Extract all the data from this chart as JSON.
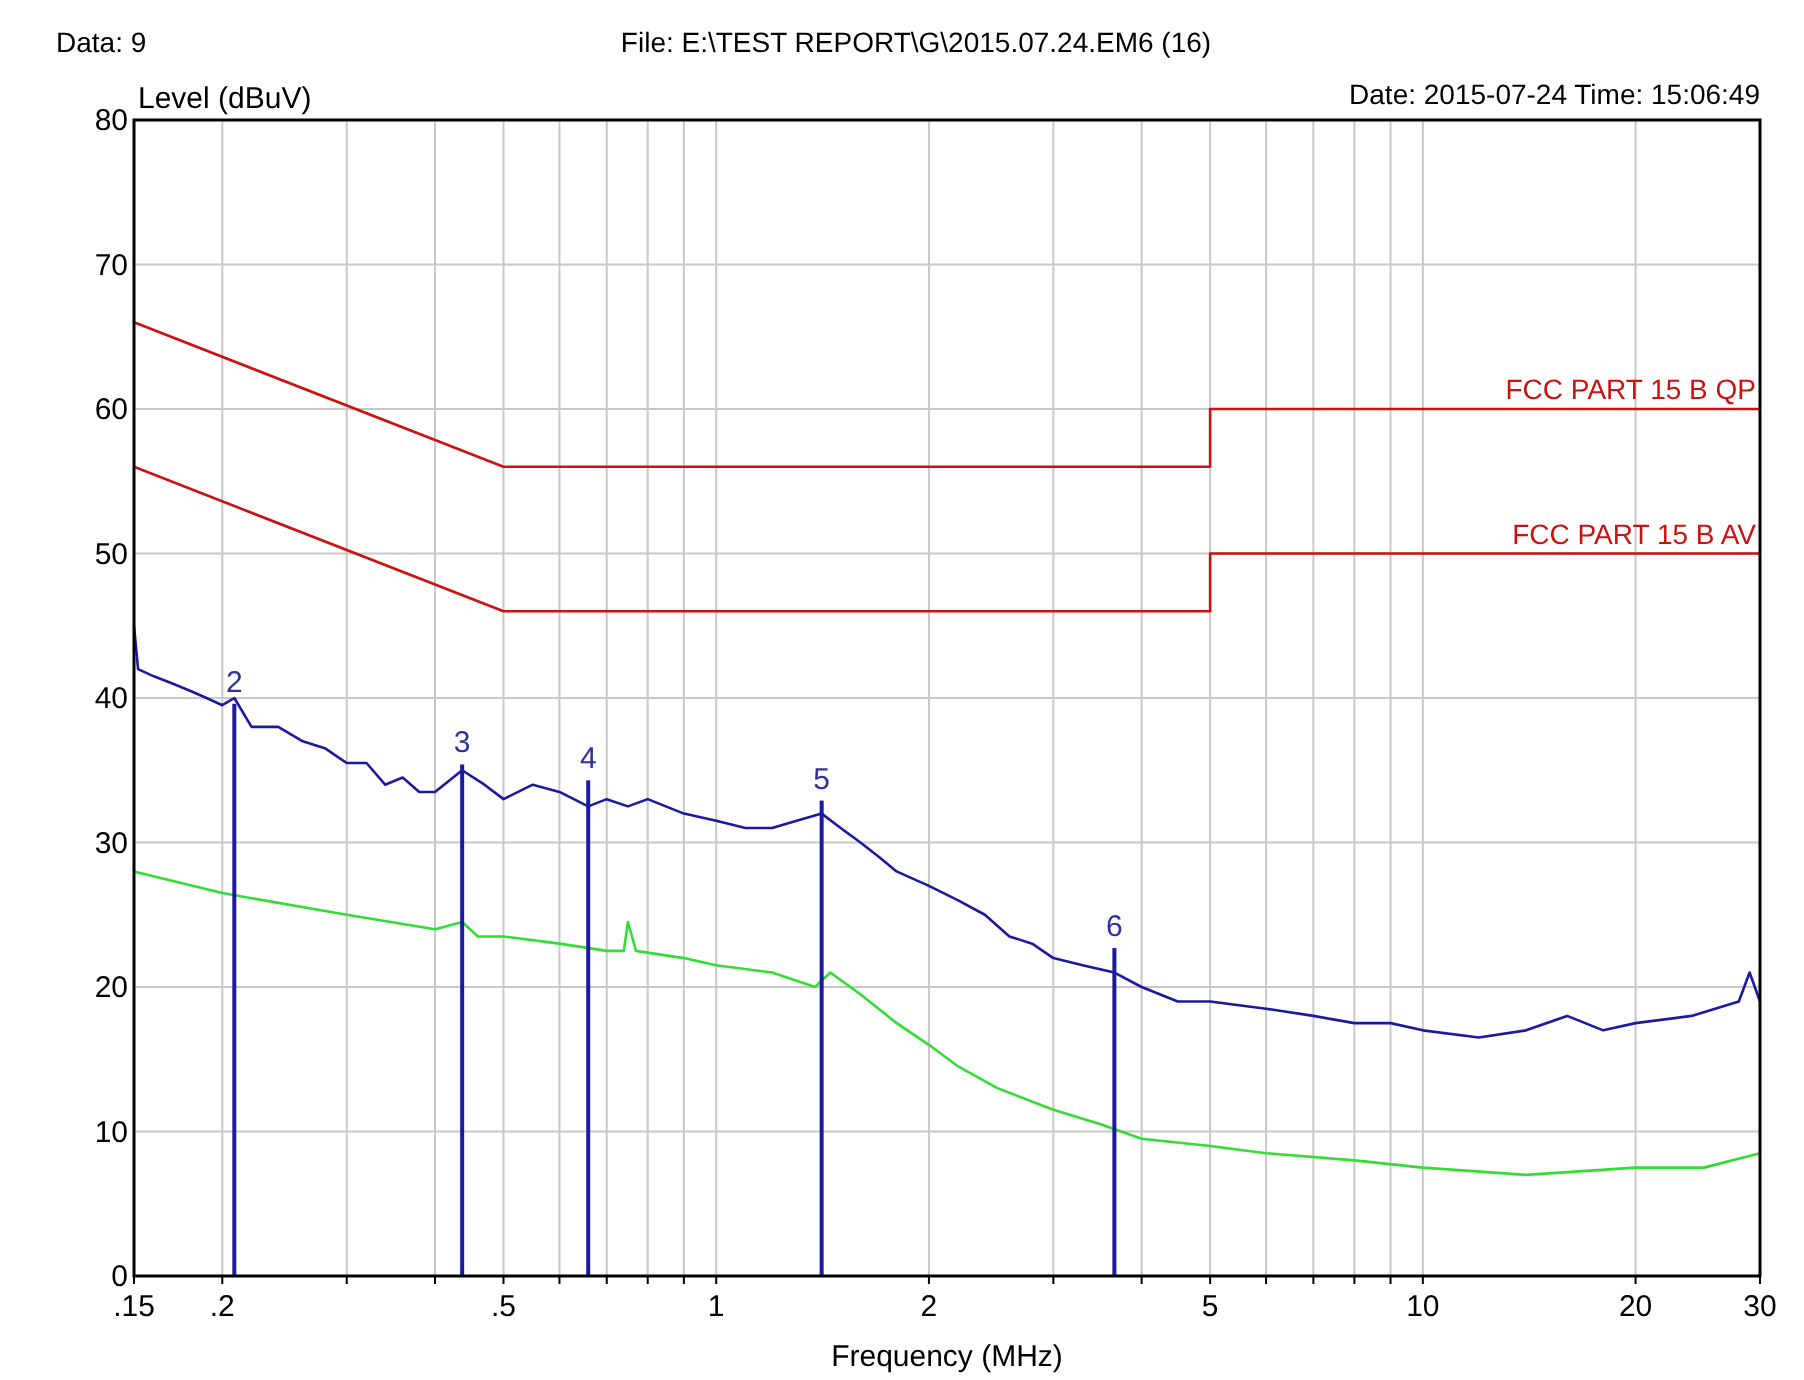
{
  "chart_data": {
    "type": "line",
    "xlabel": "Frequency (MHz)",
    "ylabel": "Level (dBuV)",
    "log": "x",
    "grid": true,
    "xlim": [
      0.15,
      30
    ],
    "ylim": [
      0,
      80
    ],
    "xticks": [
      {
        "value": 0.15,
        "label": ".15"
      },
      {
        "value": 0.2,
        "label": ".2"
      },
      {
        "value": 0.3,
        "label": null
      },
      {
        "value": 0.4,
        "label": null
      },
      {
        "value": 0.5,
        "label": ".5"
      },
      {
        "value": 0.6,
        "label": null
      },
      {
        "value": 0.7,
        "label": null
      },
      {
        "value": 0.8,
        "label": null
      },
      {
        "value": 0.9,
        "label": null
      },
      1,
      2,
      {
        "value": 3,
        "label": null
      },
      {
        "value": 4,
        "label": null
      },
      5,
      {
        "value": 6,
        "label": null
      },
      {
        "value": 7,
        "label": null
      },
      {
        "value": 8,
        "label": null
      },
      {
        "value": 9,
        "label": null
      },
      10,
      20,
      30
    ],
    "yticks": [
      0,
      10,
      20,
      30,
      40,
      50,
      60,
      70,
      80
    ],
    "series": [
      {
        "name": "FCC PART 15 B QP",
        "color": "#cc1111",
        "x": [
          0.15,
          0.5,
          5,
          5,
          30
        ],
        "values": [
          66,
          56,
          56,
          60,
          60
        ]
      },
      {
        "name": "FCC PART 15 B AV",
        "color": "#cc1111",
        "x": [
          0.15,
          0.5,
          5,
          5,
          30
        ],
        "values": [
          56,
          46,
          46,
          50,
          50
        ]
      },
      {
        "color": "#1a1aa0",
        "x": [
          0.15,
          0.152,
          0.16,
          0.17,
          0.18,
          0.19,
          0.2,
          0.208,
          0.22,
          0.24,
          0.26,
          0.28,
          0.3,
          0.32,
          0.34,
          0.36,
          0.38,
          0.4,
          0.437,
          0.47,
          0.5,
          0.55,
          0.6,
          0.659,
          0.7,
          0.75,
          0.8,
          0.9,
          1.0,
          1.1,
          1.2,
          1.3,
          1.41,
          1.5,
          1.6,
          1.7,
          1.8,
          2.0,
          2.2,
          2.4,
          2.6,
          2.8,
          3.0,
          3.3,
          3.66,
          4.0,
          4.5,
          5,
          6,
          7,
          8,
          9,
          10,
          12,
          14,
          16,
          18,
          20,
          24,
          28,
          29,
          30
        ],
        "values": [
          45,
          42,
          41.5,
          41,
          40.5,
          40,
          39.5,
          40,
          38,
          38,
          37,
          36.5,
          35.5,
          35.5,
          34,
          34.5,
          33.5,
          33.5,
          35,
          34,
          33,
          34,
          33.5,
          32.5,
          33,
          32.5,
          33,
          32,
          31.5,
          31,
          31,
          31.5,
          32,
          31,
          30,
          29,
          28,
          27,
          26,
          25,
          23.5,
          23,
          22,
          21.5,
          21,
          20,
          19,
          19,
          18.5,
          18,
          17.5,
          17.5,
          17,
          16.5,
          17,
          18,
          17,
          17.5,
          18,
          19,
          21,
          19
        ]
      },
      {
        "color": "#33dd33",
        "x": [
          0.15,
          0.2,
          0.3,
          0.4,
          0.437,
          0.46,
          0.5,
          0.6,
          0.7,
          0.74,
          0.75,
          0.77,
          0.9,
          1.0,
          1.2,
          1.38,
          1.45,
          1.6,
          1.8,
          2,
          2.2,
          2.5,
          3,
          3.5,
          4,
          5,
          6,
          8,
          10,
          14,
          20,
          25,
          30
        ],
        "values": [
          28,
          26.5,
          25,
          24,
          24.5,
          23.5,
          23.5,
          23,
          22.5,
          22.5,
          24.5,
          22.5,
          22,
          21.5,
          21,
          20,
          21,
          19.5,
          17.5,
          16,
          14.5,
          13,
          11.5,
          10.5,
          9.5,
          9,
          8.5,
          8,
          7.5,
          7,
          7.5,
          7.5,
          8.5
        ]
      },
      {
        "type": "bar",
        "color": "#1a1aa0",
        "x": [
          0.208,
          0.437,
          0.659,
          1.41,
          3.66
        ],
        "values": [
          39.6,
          35.4,
          34.3,
          32.9,
          22.7
        ]
      }
    ],
    "annotations": [
      "Data: 9",
      "File: E:\\TEST REPORT\\G\\2015.07.24.EM6  (16)",
      "Date: 2015-07-24  Time: 15:06:49",
      {
        "text": "2",
        "x": 0.208,
        "y": 39.6
      },
      {
        "text": "3",
        "x": 0.437,
        "y": 35.4
      },
      {
        "text": "4",
        "x": 0.659,
        "y": 34.3
      },
      {
        "text": "5",
        "x": 1.41,
        "y": 32.9
      },
      {
        "text": "6",
        "x": 3.66,
        "y": 22.7
      }
    ]
  }
}
